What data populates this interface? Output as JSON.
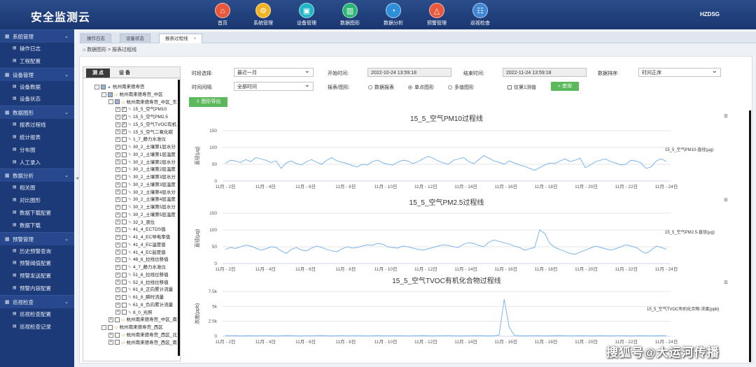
{
  "app": {
    "title": "安全监测云",
    "user": "HZDSG"
  },
  "nav": [
    {
      "label": "首页",
      "icon": "home-icon",
      "glyph": "⌂",
      "color": "#e8583c"
    },
    {
      "label": "系统管理",
      "icon": "system-icon",
      "glyph": "⚙",
      "color": "#f0b323"
    },
    {
      "label": "设备管理",
      "icon": "device-icon",
      "glyph": "▣",
      "color": "#1fb6c8"
    },
    {
      "label": "数据图形",
      "icon": "chart-icon",
      "glyph": "▥",
      "color": "#2bb673"
    },
    {
      "label": "数据分析",
      "icon": "analysis-icon",
      "glyph": "◔",
      "color": "#2f8ed8"
    },
    {
      "label": "预警管理",
      "icon": "alert-icon",
      "glyph": "△",
      "color": "#e8583c"
    },
    {
      "label": "巡视检查",
      "icon": "inspection-icon",
      "glyph": "☷",
      "color": "#3f86d6"
    }
  ],
  "sidebar": [
    {
      "group": "系统管理",
      "items": [
        "操作日志",
        "工程配置"
      ]
    },
    {
      "group": "设备管理",
      "items": [
        "设备数据",
        "设备状态"
      ]
    },
    {
      "group": "数据图形",
      "items": [
        "报表过程线",
        "统计报表",
        "分布图",
        "人工录入"
      ]
    },
    {
      "group": "数据分析",
      "items": [
        "相关图",
        "对比图形",
        "数据下载配置",
        "数据下载"
      ]
    },
    {
      "group": "预警管理",
      "items": [
        "历史预警查询",
        "预警阈值配置",
        "预警发送配置",
        "预警内容配置"
      ]
    },
    {
      "group": "巡视检查",
      "items": [
        "巡视检查配置",
        "巡视检查记录"
      ]
    }
  ],
  "tabs": [
    {
      "label": "操作日志",
      "active": false
    },
    {
      "label": "设备状态",
      "active": false
    },
    {
      "label": "报表过程线",
      "active": true
    }
  ],
  "breadcrumb": {
    "root": "数据图形",
    "sep": ">",
    "page": "报表过程线"
  },
  "tree": {
    "tabs": [
      "测 点",
      "设 备"
    ],
    "nodes": [
      {
        "label": "杭州南来德寿宫",
        "level": 0,
        "exp": "-",
        "check": "partial",
        "icon": "site"
      },
      {
        "label": "杭州南来德寿宫_中区",
        "level": 1,
        "exp": "-",
        "check": "partial",
        "icon": "folder"
      },
      {
        "label": "杭州南来德寿宫_中区_东",
        "level": 2,
        "exp": "-",
        "check": "partial",
        "icon": "folder"
      },
      {
        "label": "15_5_空气PM10",
        "level": 3,
        "exp": "+",
        "check": "on",
        "icon": "sensor"
      },
      {
        "label": "15_5_空气PM2.5",
        "level": 3,
        "exp": "+",
        "check": "on",
        "icon": "sensor"
      },
      {
        "label": "15_5_空气TVOC有机",
        "level": 3,
        "exp": "+",
        "check": "on",
        "icon": "sensor"
      },
      {
        "label": "15_5_空气二氧化碳",
        "level": 3,
        "exp": "+",
        "check": "on",
        "icon": "sensor"
      },
      {
        "label": "1_7_静力水准仪",
        "level": 3,
        "exp": "+",
        "check": "off",
        "icon": "sensor"
      },
      {
        "label": "30_2_土壤第1层水分",
        "level": 3,
        "exp": "+",
        "check": "off",
        "icon": "sensor"
      },
      {
        "label": "30_2_土壤第1层温度",
        "level": 3,
        "exp": "+",
        "check": "off",
        "icon": "sensor"
      },
      {
        "label": "30_2_土壤第2层水分",
        "level": 3,
        "exp": "+",
        "check": "off",
        "icon": "sensor"
      },
      {
        "label": "30_2_土壤第2层温度",
        "level": 3,
        "exp": "+",
        "check": "off",
        "icon": "sensor"
      },
      {
        "label": "30_2_土壤第3层水分",
        "level": 3,
        "exp": "+",
        "check": "off",
        "icon": "sensor"
      },
      {
        "label": "30_2_土壤第3层温度",
        "level": 3,
        "exp": "+",
        "check": "off",
        "icon": "sensor"
      },
      {
        "label": "30_2_土壤第4层水分",
        "level": 3,
        "exp": "+",
        "check": "off",
        "icon": "sensor"
      },
      {
        "label": "30_2_土壤第4层温度",
        "level": 3,
        "exp": "+",
        "check": "off",
        "icon": "sensor"
      },
      {
        "label": "30_2_土壤第5层水分",
        "level": 3,
        "exp": "+",
        "check": "off",
        "icon": "sensor"
      },
      {
        "label": "30_2_土壤第5层温度",
        "level": 3,
        "exp": "+",
        "check": "off",
        "icon": "sensor"
      },
      {
        "label": "32_3_液位",
        "level": 3,
        "exp": "+",
        "check": "off",
        "icon": "sensor"
      },
      {
        "label": "41_4_ECTDS值",
        "level": 3,
        "exp": "+",
        "check": "off",
        "icon": "sensor"
      },
      {
        "label": "41_4_EC导电率值",
        "level": 3,
        "exp": "+",
        "check": "off",
        "icon": "sensor"
      },
      {
        "label": "41_4_EC温度值",
        "level": 3,
        "exp": "+",
        "check": "off",
        "icon": "sensor"
      },
      {
        "label": "41_4_EC盐度值",
        "level": 3,
        "exp": "+",
        "check": "off",
        "icon": "sensor"
      },
      {
        "label": "48_6_拉线位移值",
        "level": 3,
        "exp": "+",
        "check": "off",
        "icon": "sensor"
      },
      {
        "label": "4_7_静力水准仪",
        "level": 3,
        "exp": "+",
        "check": "off",
        "icon": "sensor"
      },
      {
        "label": "51_6_拉线位移值",
        "level": 3,
        "exp": "+",
        "check": "off",
        "icon": "sensor"
      },
      {
        "label": "52_6_拉线位移值",
        "level": 3,
        "exp": "+",
        "check": "off",
        "icon": "sensor"
      },
      {
        "label": "61_8_正向累计流量",
        "level": 3,
        "exp": "+",
        "check": "off",
        "icon": "sensor"
      },
      {
        "label": "61_8_瞬时流量",
        "level": 3,
        "exp": "+",
        "check": "off",
        "icon": "sensor"
      },
      {
        "label": "61_8_负向累计流量",
        "level": 3,
        "exp": "+",
        "check": "off",
        "icon": "sensor"
      },
      {
        "label": "8_0_光照",
        "level": 3,
        "exp": "+",
        "check": "off",
        "icon": "sensor"
      },
      {
        "label": "杭州南来德寿宫_中区_南",
        "level": 2,
        "exp": "+",
        "check": "off",
        "icon": "folder"
      },
      {
        "label": "杭州南来德寿宫_西区",
        "level": 1,
        "exp": "-",
        "check": "off",
        "icon": "folder"
      },
      {
        "label": "杭州南来德寿宫_西区_北",
        "level": 2,
        "exp": "+",
        "check": "off",
        "icon": "folder"
      },
      {
        "label": "杭州南来德寿宫_西区_南",
        "level": 2,
        "exp": "+",
        "check": "off",
        "icon": "folder"
      }
    ]
  },
  "filters": {
    "period_label": "时段选择:",
    "period_value": "最近一月",
    "start_label": "开始时间:",
    "start_value": "2022-10-24 13:59:18",
    "end_label": "结束时间:",
    "end_value": "2022-11-24 13:59:18",
    "sort_label": "数据排序:",
    "sort_value": "时间正序",
    "interval_label": "时间间隔:",
    "interval_value": "全部时间",
    "mode_label": "报表/图形:",
    "modes": [
      {
        "label": "数据报表",
        "on": false
      },
      {
        "label": "单点图形",
        "on": true
      },
      {
        "label": "多值图形",
        "on": false
      }
    ],
    "first_only_label": "仅第1测值",
    "query_label": "查询",
    "export_label": "图形导出"
  },
  "chart_data": [
    {
      "type": "line",
      "title": "15_5_空气PM10过程线",
      "ylabel": "直径(μg)",
      "ylim": [
        0,
        150
      ],
      "yticks": [
        "150",
        "100",
        "50",
        "0"
      ],
      "xticks": [
        "11月 - 2日",
        "11月 - 4日",
        "11月 - 6日",
        "11月 - 8日",
        "11月 - 10日",
        "11月 - 12日",
        "11月 - 14日",
        "11月 - 16日",
        "11月 - 18日",
        "11月 - 20日",
        "11月 - 22日",
        "11月 - 24日"
      ],
      "series": [
        {
          "name": "15_5_空气PM10-直径(μg)",
          "color": "#7cb5ec",
          "values": [
            52,
            62,
            60,
            55,
            64,
            58,
            70,
            66,
            62,
            55,
            60,
            38,
            54,
            60,
            52,
            48,
            58,
            64,
            56,
            50,
            62,
            70,
            60,
            56,
            52,
            46,
            42,
            50,
            48,
            58,
            62,
            55,
            50,
            48,
            56,
            62,
            60,
            52,
            58,
            66,
            74,
            68,
            60,
            54,
            50,
            62,
            66,
            70,
            58,
            52,
            64,
            76,
            68,
            60,
            56,
            50,
            60,
            54,
            48,
            44,
            38,
            32,
            40,
            48,
            54,
            52,
            60,
            66,
            58,
            62,
            68,
            40,
            48,
            58,
            62,
            66,
            58,
            54,
            48,
            50,
            62,
            60,
            54,
            38,
            42,
            60,
            66,
            58
          ]
        }
      ]
    },
    {
      "type": "line",
      "title": "15_5_空气PM2.5过程线",
      "ylabel": "直径(μg)",
      "ylim": [
        0,
        150
      ],
      "yticks": [
        "150",
        "100",
        "50",
        "0"
      ],
      "xticks": [
        "11月 - 2日",
        "11月 - 4日",
        "11月 - 6日",
        "11月 - 8日",
        "11月 - 10日",
        "11月 - 12日",
        "11月 - 14日",
        "11月 - 16日",
        "11月 - 18日",
        "11月 - 20日",
        "11月 - 22日",
        "11月 - 24日"
      ],
      "series": [
        {
          "name": "15_5_空气PM2.5-直径(μg)",
          "color": "#7cb5ec",
          "values": [
            42,
            48,
            45,
            50,
            55,
            52,
            46,
            40,
            44,
            50,
            48,
            38,
            30,
            42,
            48,
            40,
            38,
            46,
            52,
            48,
            42,
            38,
            35,
            44,
            50,
            46,
            48,
            52,
            56,
            54,
            60,
            58,
            50,
            48,
            46,
            52,
            50,
            46,
            42,
            40,
            44,
            48,
            52,
            56,
            54,
            50,
            48,
            58,
            62,
            60,
            54,
            50,
            64,
            70,
            66,
            62,
            58,
            52,
            48,
            40,
            44,
            48,
            100,
            90,
            60,
            48,
            42,
            36,
            30,
            28,
            34,
            40,
            46,
            52,
            48,
            44,
            40,
            44,
            50,
            56,
            52,
            48,
            38,
            30,
            40,
            52,
            48,
            42
          ]
        }
      ]
    },
    {
      "type": "line",
      "title": "15_5_空气TVOC有机化合物过程线",
      "ylabel": "浓度(ppb)",
      "ylim": [
        0,
        7500
      ],
      "yticks": [
        "7.5k",
        "5k",
        "2.5k",
        "0"
      ],
      "xticks": [
        "11月 - 2日",
        "11月 - 4日",
        "11月 - 6日",
        "11月 - 8日",
        "11月 - 10日",
        "11月 - 12日",
        "11月 - 14日",
        "11月 - 16日",
        "11月 - 18日",
        "11月 - 20日",
        "11月 - 22日",
        "11月 - 24日"
      ],
      "series": [
        {
          "name": "15_5_空气TVOC有机化合物-浓度(ppb)",
          "color": "#7cb5ec",
          "values": [
            120,
            80,
            100,
            60,
            90,
            110,
            70,
            80,
            100,
            90,
            60,
            80,
            120,
            100,
            70,
            60,
            90,
            80,
            100,
            120,
            90,
            60,
            80,
            100,
            70,
            90,
            110,
            80,
            60,
            90,
            100,
            80,
            70,
            90,
            110,
            90,
            60,
            80,
            100,
            120,
            90,
            70,
            80,
            90,
            100,
            80,
            60,
            70,
            90,
            110,
            100,
            80,
            60,
            90,
            200,
            6200,
            1500,
            150,
            90,
            70,
            80,
            100,
            90,
            60,
            80,
            100,
            120,
            90,
            70,
            80,
            100,
            90,
            60,
            80,
            100,
            90,
            70,
            80,
            110,
            90,
            60,
            80,
            100,
            90,
            70,
            80,
            100,
            90
          ]
        }
      ]
    }
  ],
  "watermark": "搜狐号@大运河传播"
}
